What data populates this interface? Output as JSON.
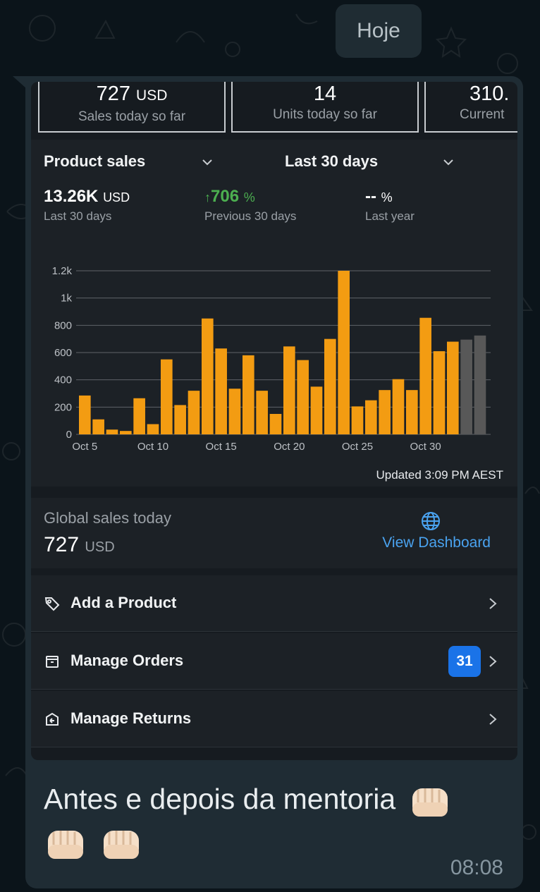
{
  "chat": {
    "date_chip": "Hoje",
    "caption": "Antes e depois da mentoria",
    "time": "08:08",
    "caption_emoji_icons": [
      "fist-emoji-icon",
      "fist-emoji-icon",
      "fist-emoji-icon"
    ]
  },
  "stats": [
    {
      "value": "727",
      "unit": "USD",
      "label": "Sales today so far"
    },
    {
      "value": "14",
      "unit": "",
      "label": "Units today so far"
    },
    {
      "value": "310.",
      "unit": "",
      "label": "Current"
    }
  ],
  "sales_panel": {
    "metric_dropdown": "Product sales",
    "range_dropdown": "Last 30 days",
    "kpis": [
      {
        "value": "13.26K",
        "unit": "USD",
        "sub": "Last 30 days"
      },
      {
        "arrow": "↑",
        "value": "706",
        "unit": "%",
        "sub": "Previous 30 days"
      },
      {
        "value": "--",
        "unit": "%",
        "sub": "Last year"
      }
    ],
    "updated": "Updated 3:09 PM AEST"
  },
  "chart_data": {
    "type": "bar",
    "title": "Product sales",
    "xlabel": "",
    "ylabel": "",
    "ylim": [
      0,
      1200
    ],
    "yticks": [
      0,
      200,
      400,
      600,
      800,
      1000,
      1200
    ],
    "ytick_labels": [
      "0",
      "200",
      "400",
      "600",
      "800",
      "1k",
      "1.2k"
    ],
    "xtick_labels": [
      "Oct 5",
      "Oct 10",
      "Oct 15",
      "Oct 20",
      "Oct 25",
      "Oct 30"
    ],
    "xtick_index": [
      0,
      5,
      10,
      15,
      20,
      25
    ],
    "values": [
      285,
      110,
      35,
      25,
      265,
      75,
      550,
      215,
      320,
      850,
      630,
      335,
      580,
      320,
      150,
      645,
      545,
      350,
      700,
      1200,
      205,
      250,
      325,
      405,
      325,
      855,
      610,
      680,
      695,
      725
    ],
    "partial_from_index": 28,
    "colors": {
      "bar": "#f39c12",
      "partial": "#585858",
      "grid": "#5f6368"
    }
  },
  "global": {
    "title": "Global sales today",
    "value": "727",
    "unit": "USD",
    "link": "View Dashboard"
  },
  "menu": [
    {
      "label": "Add a Product",
      "icon": "tag-icon"
    },
    {
      "label": "Manage Orders",
      "icon": "box-icon",
      "badge": "31"
    },
    {
      "label": "Manage Returns",
      "icon": "return-box-icon"
    }
  ]
}
